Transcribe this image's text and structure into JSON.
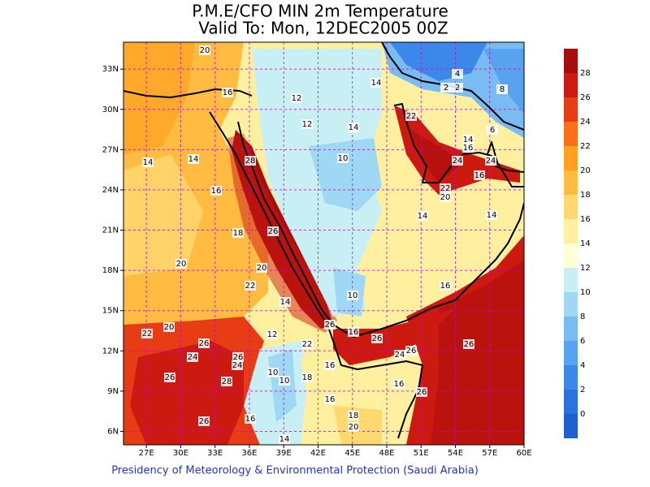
{
  "title": "P.M.E/CFO MIN 2m Temperature",
  "subtitle": "Valid To: Mon, 12DEC2005 00Z",
  "lon_labels": [
    "27E",
    "30E",
    "33E",
    "36E",
    "39E",
    "42E",
    "45E",
    "48E",
    "51E",
    "54E",
    "57E",
    "60E"
  ],
  "lat_labels": [
    "6N",
    "9N",
    "12N",
    "15N",
    "18N",
    "21N",
    "24N",
    "27N",
    "30N",
    "33N"
  ],
  "colorbar": {
    "labels": [
      0,
      2,
      4,
      6,
      8,
      10,
      12,
      14,
      16,
      18,
      20,
      22,
      24,
      26,
      28
    ],
    "colors": [
      "#1e5fd0",
      "#2a72e0",
      "#3c88ea",
      "#58a2f0",
      "#78bcf2",
      "#9ed8f4",
      "#c8f0f4",
      "#ffffd8",
      "#fff0a0",
      "#ffd870",
      "#ffbc40",
      "#ffa020",
      "#f87018",
      "#e83c14",
      "#cc1a10",
      "#a80c0c"
    ]
  },
  "contour_labels": [
    20,
    16,
    12,
    14,
    12,
    14,
    22,
    14,
    14,
    28,
    10,
    16,
    22,
    20,
    18,
    26,
    14,
    14,
    20,
    20,
    22,
    16,
    10,
    14,
    22,
    20,
    26,
    16,
    26,
    12,
    22,
    26,
    24,
    26,
    24,
    24,
    26,
    26,
    16,
    10,
    10,
    18,
    26,
    28,
    16,
    26,
    16,
    18,
    20,
    16,
    26,
    14,
    24,
    16,
    24,
    16,
    14,
    6,
    8,
    2,
    4,
    2
  ],
  "footer": "Presidency of Meteorology & Environmental Protection (Saudi Arabia)"
}
